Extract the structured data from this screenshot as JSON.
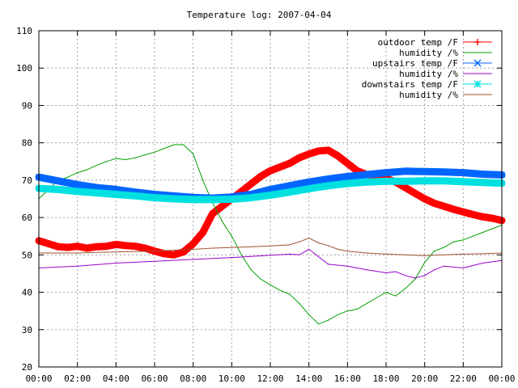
{
  "chart_data": {
    "type": "line",
    "title": "Temperature log: 2007-04-04",
    "xlabel": "",
    "ylabel": "",
    "xlim": [
      0,
      24
    ],
    "ylim": [
      20,
      110
    ],
    "grid": true,
    "legend_position": "top-right",
    "x_ticks": [
      "00:00",
      "02:00",
      "04:00",
      "06:00",
      "08:00",
      "10:00",
      "12:00",
      "14:00",
      "16:00",
      "18:00",
      "20:00",
      "22:00",
      "00:00"
    ],
    "y_ticks": [
      "20",
      "30",
      "40",
      "50",
      "60",
      "70",
      "80",
      "90",
      "100",
      "110"
    ],
    "series": [
      {
        "name": "outdoor temp /F",
        "color": "#ff0000",
        "marker": "plus",
        "points": [
          [
            0,
            53.8
          ],
          [
            0.5,
            53
          ],
          [
            1,
            52.2
          ],
          [
            1.5,
            52
          ],
          [
            2,
            52.3
          ],
          [
            2.5,
            51.8
          ],
          [
            3,
            52.2
          ],
          [
            3.5,
            52.3
          ],
          [
            4,
            52.8
          ],
          [
            4.5,
            52.5
          ],
          [
            5,
            52.3
          ],
          [
            5.5,
            51.8
          ],
          [
            6,
            51
          ],
          [
            6.5,
            50.3
          ],
          [
            7,
            50
          ],
          [
            7.5,
            50.8
          ],
          [
            8,
            53
          ],
          [
            8.5,
            56
          ],
          [
            9,
            61
          ],
          [
            9.5,
            63
          ],
          [
            10,
            65
          ],
          [
            10.5,
            67
          ],
          [
            11,
            69
          ],
          [
            11.5,
            71
          ],
          [
            12,
            72.5
          ],
          [
            12.5,
            73.5
          ],
          [
            13,
            74.5
          ],
          [
            13.5,
            76
          ],
          [
            14,
            77
          ],
          [
            14.5,
            77.8
          ],
          [
            15,
            78
          ],
          [
            15.5,
            76.5
          ],
          [
            16,
            74.5
          ],
          [
            16.5,
            72.5
          ],
          [
            17,
            71.5
          ],
          [
            17.5,
            70.8
          ],
          [
            18,
            70.5
          ],
          [
            18.5,
            69.5
          ],
          [
            19,
            68
          ],
          [
            19.5,
            66.5
          ],
          [
            20,
            65
          ],
          [
            20.5,
            63.8
          ],
          [
            21,
            63
          ],
          [
            21.5,
            62.2
          ],
          [
            22,
            61.5
          ],
          [
            22.5,
            60.8
          ],
          [
            23,
            60.2
          ],
          [
            23.5,
            59.8
          ],
          [
            24,
            59.2
          ]
        ]
      },
      {
        "name": "humidity /%",
        "color": "#00a000",
        "points": [
          [
            0,
            65
          ],
          [
            0.5,
            67.5
          ],
          [
            1,
            70
          ],
          [
            1.5,
            70.8
          ],
          [
            2,
            72
          ],
          [
            2.5,
            72.8
          ],
          [
            3,
            74
          ],
          [
            3.5,
            75
          ],
          [
            4,
            75.8
          ],
          [
            4.5,
            75.5
          ],
          [
            5,
            76
          ],
          [
            5.5,
            76.8
          ],
          [
            6,
            77.5
          ],
          [
            6.5,
            78.5
          ],
          [
            7,
            79.5
          ],
          [
            7.5,
            79.5
          ],
          [
            8,
            77
          ],
          [
            8.5,
            70
          ],
          [
            9,
            64
          ],
          [
            9.5,
            59
          ],
          [
            10,
            55
          ],
          [
            10.5,
            50
          ],
          [
            11,
            46
          ],
          [
            11.5,
            43.5
          ],
          [
            12,
            42
          ],
          [
            12.5,
            40.5
          ],
          [
            13,
            39.5
          ],
          [
            13.5,
            37
          ],
          [
            14,
            34
          ],
          [
            14.5,
            31.5
          ],
          [
            15,
            32.5
          ],
          [
            15.5,
            34
          ],
          [
            16,
            35
          ],
          [
            16.5,
            35.5
          ],
          [
            17,
            37
          ],
          [
            17.5,
            38.5
          ],
          [
            18,
            40
          ],
          [
            18.5,
            39
          ],
          [
            19,
            41
          ],
          [
            19.5,
            43.5
          ],
          [
            20,
            48
          ],
          [
            20.5,
            51
          ],
          [
            21,
            52
          ],
          [
            21.5,
            53.5
          ],
          [
            22,
            54
          ],
          [
            22.5,
            55
          ],
          [
            23,
            56
          ],
          [
            23.5,
            57
          ],
          [
            24,
            58
          ]
        ]
      },
      {
        "name": "upstairs temp /F",
        "color": "#0066ff",
        "marker": "x",
        "points": [
          [
            0,
            70.8
          ],
          [
            1,
            69.8
          ],
          [
            2,
            68.8
          ],
          [
            3,
            68
          ],
          [
            4,
            67.5
          ],
          [
            5,
            66.8
          ],
          [
            6,
            66.2
          ],
          [
            7,
            65.8
          ],
          [
            8,
            65.4
          ],
          [
            9,
            65.2
          ],
          [
            10,
            65.5
          ],
          [
            11,
            66.2
          ],
          [
            12,
            67.5
          ],
          [
            13,
            68.5
          ],
          [
            14,
            69.5
          ],
          [
            15,
            70.3
          ],
          [
            16,
            71
          ],
          [
            17,
            71.5
          ],
          [
            18,
            72
          ],
          [
            19,
            72.4
          ],
          [
            20,
            72.3
          ],
          [
            21,
            72.2
          ],
          [
            22,
            72
          ],
          [
            23,
            71.6
          ],
          [
            24,
            71.4
          ]
        ]
      },
      {
        "name": "humidity /%",
        "color": "#9900cc",
        "points": [
          [
            0,
            46.5
          ],
          [
            2,
            47
          ],
          [
            4,
            47.8
          ],
          [
            6,
            48.3
          ],
          [
            8,
            48.8
          ],
          [
            10,
            49.3
          ],
          [
            11,
            49.6
          ],
          [
            12,
            49.9
          ],
          [
            13,
            50.2
          ],
          [
            13.5,
            50
          ],
          [
            14,
            51.5
          ],
          [
            14.5,
            49.5
          ],
          [
            15,
            47.5
          ],
          [
            16,
            47
          ],
          [
            17,
            46
          ],
          [
            18,
            45.2
          ],
          [
            18.5,
            45.5
          ],
          [
            19,
            44.5
          ],
          [
            19.5,
            43.8
          ],
          [
            20,
            44.5
          ],
          [
            20.5,
            46
          ],
          [
            21,
            47
          ],
          [
            22,
            46.5
          ],
          [
            23,
            47.8
          ],
          [
            24,
            48.5
          ]
        ]
      },
      {
        "name": "downstairs temp /F",
        "color": "#00e0e0",
        "marker": "star",
        "points": [
          [
            0,
            67.8
          ],
          [
            1,
            67.5
          ],
          [
            2,
            67
          ],
          [
            3,
            66.6
          ],
          [
            4,
            66.2
          ],
          [
            5,
            65.8
          ],
          [
            6,
            65.3
          ],
          [
            7,
            65
          ],
          [
            8,
            64.8
          ],
          [
            9,
            64.8
          ],
          [
            10,
            64.9
          ],
          [
            11,
            65.3
          ],
          [
            12,
            66
          ],
          [
            13,
            66.8
          ],
          [
            14,
            67.7
          ],
          [
            15,
            68.5
          ],
          [
            16,
            69.1
          ],
          [
            17,
            69.5
          ],
          [
            18,
            69.7
          ],
          [
            19,
            69.7
          ],
          [
            20,
            69.8
          ],
          [
            21,
            69.8
          ],
          [
            22,
            69.6
          ],
          [
            23,
            69.4
          ],
          [
            24,
            69.2
          ]
        ]
      },
      {
        "name": "humidity /%",
        "color": "#a0522d",
        "points": [
          [
            0,
            50.5
          ],
          [
            2,
            50.5
          ],
          [
            4,
            50.8
          ],
          [
            6,
            51
          ],
          [
            8,
            51.5
          ],
          [
            9,
            51.8
          ],
          [
            10,
            52
          ],
          [
            11,
            52.2
          ],
          [
            12,
            52.4
          ],
          [
            13,
            52.7
          ],
          [
            13.5,
            53.5
          ],
          [
            14,
            54.5
          ],
          [
            14.5,
            53.2
          ],
          [
            15,
            52.5
          ],
          [
            15.5,
            51.5
          ],
          [
            16,
            51
          ],
          [
            17,
            50.5
          ],
          [
            18,
            50.2
          ],
          [
            19,
            50
          ],
          [
            20,
            49.8
          ],
          [
            21,
            50
          ],
          [
            22,
            50.2
          ],
          [
            23,
            50.3
          ],
          [
            24,
            50.5
          ]
        ]
      }
    ]
  }
}
